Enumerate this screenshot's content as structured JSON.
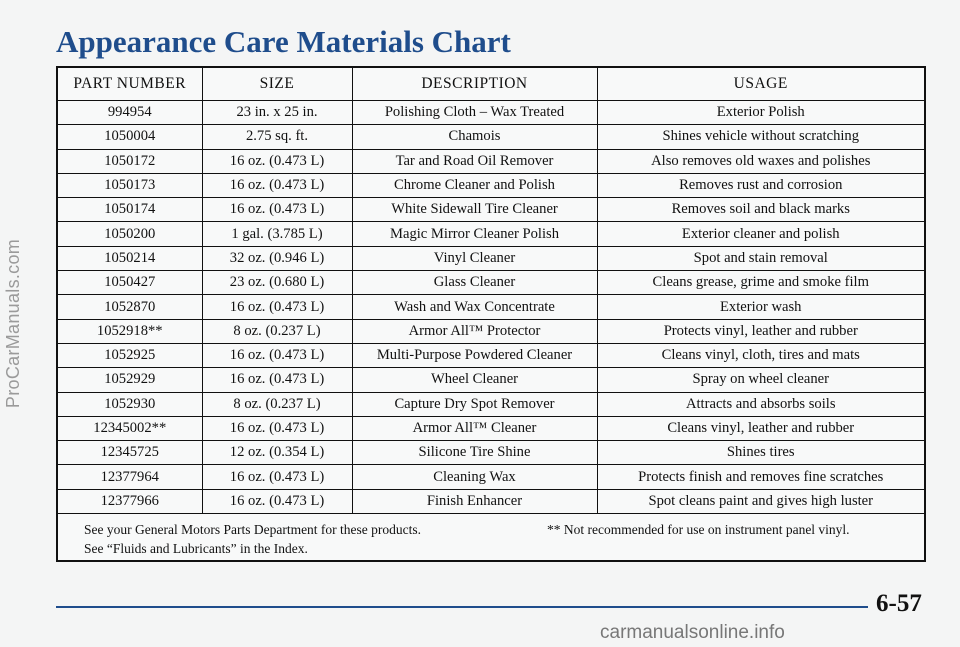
{
  "watermark_side": "ProCarManuals.com",
  "watermark_bottom": "carmanualsonline.info",
  "title": "Appearance Care Materials Chart",
  "columns": [
    "PART NUMBER",
    "SIZE",
    "DESCRIPTION",
    "USAGE"
  ],
  "rows": [
    [
      "994954",
      "23 in. x 25 in.",
      "Polishing Cloth – Wax Treated",
      "Exterior Polish"
    ],
    [
      "1050004",
      "2.75 sq. ft.",
      "Chamois",
      "Shines vehicle without scratching"
    ],
    [
      "1050172",
      "16 oz. (0.473 L)",
      "Tar and Road Oil Remover",
      "Also removes old waxes and polishes"
    ],
    [
      "1050173",
      "16 oz. (0.473 L)",
      "Chrome Cleaner and Polish",
      "Removes rust and corrosion"
    ],
    [
      "1050174",
      "16 oz. (0.473 L)",
      "White Sidewall Tire Cleaner",
      "Removes soil and black marks"
    ],
    [
      "1050200",
      "1 gal. (3.785 L)",
      "Magic Mirror Cleaner Polish",
      "Exterior cleaner and polish"
    ],
    [
      "1050214",
      "32 oz. (0.946 L)",
      "Vinyl Cleaner",
      "Spot and stain removal"
    ],
    [
      "1050427",
      "23 oz. (0.680 L)",
      "Glass Cleaner",
      "Cleans grease, grime and smoke film"
    ],
    [
      "1052870",
      "16 oz. (0.473 L)",
      "Wash and Wax Concentrate",
      "Exterior wash"
    ],
    [
      "1052918**",
      "8 oz. (0.237 L)",
      "Armor All™ Protector",
      "Protects vinyl, leather and rubber"
    ],
    [
      "1052925",
      "16 oz. (0.473 L)",
      "Multi-Purpose Powdered Cleaner",
      "Cleans vinyl, cloth, tires and mats"
    ],
    [
      "1052929",
      "16 oz. (0.473 L)",
      "Wheel Cleaner",
      "Spray on wheel cleaner"
    ],
    [
      "1052930",
      "8 oz. (0.237 L)",
      "Capture Dry Spot Remover",
      "Attracts and absorbs soils"
    ],
    [
      "12345002**",
      "16 oz. (0.473 L)",
      "Armor All™ Cleaner",
      "Cleans vinyl, leather and rubber"
    ],
    [
      "12345725",
      "12 oz. (0.354 L)",
      "Silicone Tire Shine",
      "Shines tires"
    ],
    [
      "12377964",
      "16 oz. (0.473 L)",
      "Cleaning Wax",
      "Protects finish and removes fine scratches"
    ],
    [
      "12377966",
      "16 oz. (0.473 L)",
      "Finish Enhancer",
      "Spot cleans paint and gives high luster"
    ]
  ],
  "notes": {
    "line1_left": "See your General Motors Parts Department for these products.",
    "line1_right": "** Not recommended for use on instrument panel vinyl.",
    "line2": "See “Fluids and Lubricants” in the Index."
  },
  "page_number": "6-57",
  "colors": {
    "title": "#1f4d8c",
    "rule": "#1f4d8c"
  }
}
